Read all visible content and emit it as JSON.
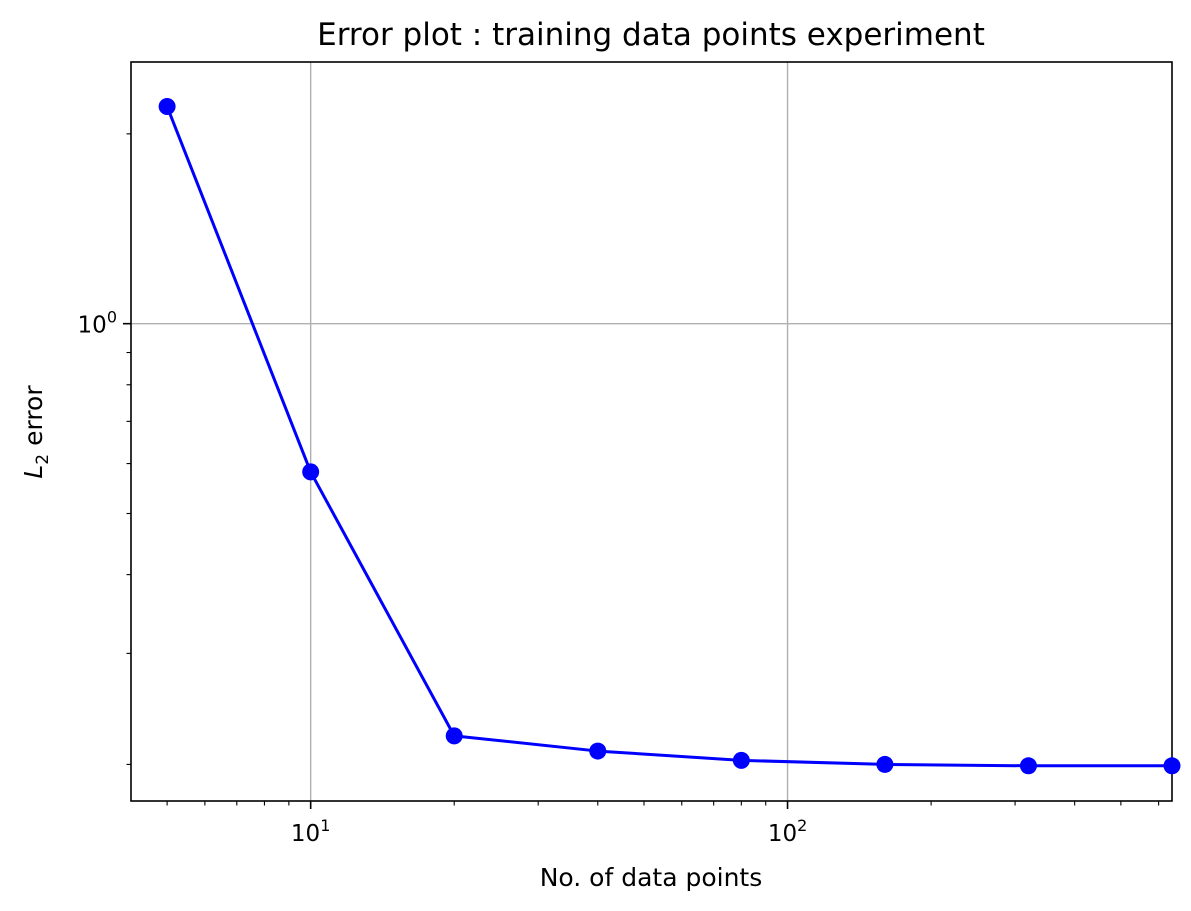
{
  "chart_data": {
    "type": "line",
    "title": "Error plot : training data points experiment",
    "xlabel": "No. of data points",
    "ylabel": {
      "symbol": "L",
      "subscript": "2",
      "rest": "error"
    },
    "x_scale": "log",
    "y_scale": "log",
    "xlim": [
      4.2,
      640
    ],
    "ylim": [
      0.175,
      2.6
    ],
    "grid": true,
    "legend": "none",
    "x_ticks": [
      {
        "value": 10,
        "base": "10",
        "exp": "1"
      },
      {
        "value": 100,
        "base": "10",
        "exp": "2"
      }
    ],
    "y_ticks": [
      {
        "value": 1,
        "base": "10",
        "exp": "0"
      }
    ],
    "series": [
      {
        "color": "#0000ff",
        "marker": "circle",
        "x": [
          5,
          10,
          20,
          40,
          80,
          160,
          320,
          640
        ],
        "y": [
          2.21,
          0.582,
          0.222,
          0.21,
          0.203,
          0.2,
          0.199,
          0.199
        ]
      }
    ]
  }
}
